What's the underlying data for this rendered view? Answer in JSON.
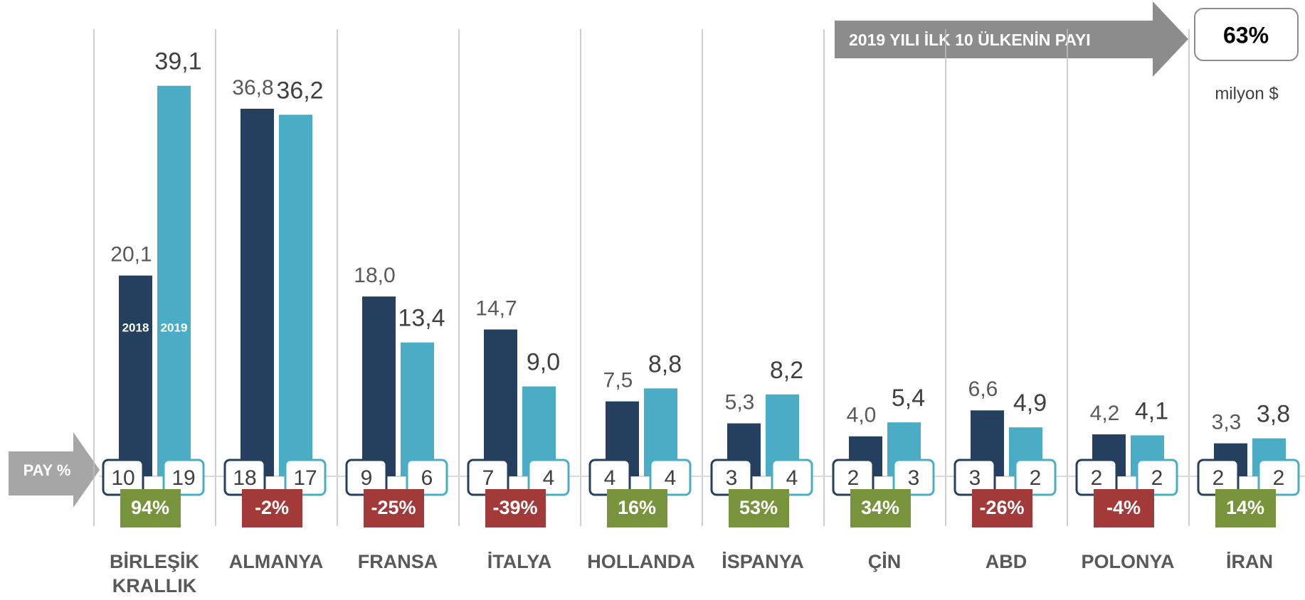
{
  "chart_data": {
    "type": "bar",
    "unit": "milyon $",
    "share_label": "PAY %",
    "callout": {
      "title": "2019 YILI İLK 10 ÜLKENİN PAYI",
      "value": 63,
      "value_label": "63%"
    },
    "categories": [
      "BİRLEŞİK KRALLIK",
      "ALMANYA",
      "FRANSA",
      "İTALYA",
      "HOLLANDA",
      "İSPANYA",
      "ÇİN",
      "ABD",
      "POLONYA",
      "İRAN"
    ],
    "series": [
      {
        "name": "2018",
        "color": "#253f5e",
        "values": [
          20.1,
          36.8,
          18.0,
          14.7,
          7.5,
          5.3,
          4.0,
          6.6,
          4.2,
          3.3
        ],
        "value_labels": [
          "20,1",
          "36,8",
          "18,0",
          "14,7",
          "7,5",
          "5,3",
          "4,0",
          "6,6",
          "4,2",
          "3,3"
        ],
        "shares": [
          10,
          18,
          9,
          7,
          4,
          3,
          2,
          3,
          2,
          2
        ]
      },
      {
        "name": "2019",
        "color": "#4bacc6",
        "values": [
          39.1,
          36.2,
          13.4,
          9.0,
          8.8,
          8.2,
          5.4,
          4.9,
          4.1,
          3.8
        ],
        "value_labels": [
          "39,1",
          "36,2",
          "13,4",
          "9,0",
          "8,8",
          "8,2",
          "5,4",
          "4,9",
          "4,1",
          "3,8"
        ],
        "shares": [
          19,
          17,
          6,
          4,
          4,
          4,
          3,
          2,
          2,
          2
        ]
      }
    ],
    "changes": {
      "values": [
        94,
        -2,
        -25,
        -39,
        16,
        53,
        34,
        -26,
        -4,
        14
      ],
      "value_labels": [
        "94%",
        "-2%",
        "-25%",
        "-39%",
        "16%",
        "53%",
        "34%",
        "-26%",
        "-4%",
        "14%"
      ],
      "up_color": "#77933c",
      "down_color": "#a33a3a"
    },
    "ylim": [
      0,
      40
    ]
  }
}
